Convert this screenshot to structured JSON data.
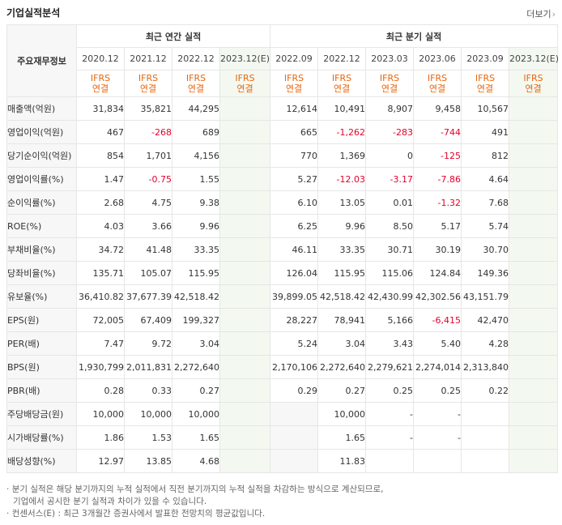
{
  "title": "기업실적분석",
  "more_label": "더보기",
  "row_header": "주요재무정보",
  "groups": {
    "annual": "최근 연간 실적",
    "quarter": "최근 분기 실적"
  },
  "periods": [
    "2020.12",
    "2021.12",
    "2022.12",
    "2023.12(E)",
    "2022.09",
    "2022.12",
    "2023.03",
    "2023.06",
    "2023.09",
    "2023.12(E)"
  ],
  "ifrs_top": "IFRS",
  "ifrs_bottom": "연결",
  "rows": [
    {
      "label": "매출액(억원)",
      "values": [
        "31,834",
        "35,821",
        "44,295",
        "",
        "12,614",
        "10,491",
        "8,907",
        "9,458",
        "10,567",
        ""
      ]
    },
    {
      "label": "영업이익(억원)",
      "values": [
        "467",
        "-268",
        "689",
        "",
        "665",
        "-1,262",
        "-283",
        "-744",
        "491",
        ""
      ]
    },
    {
      "label": "당기순이익(억원)",
      "values": [
        "854",
        "1,701",
        "4,156",
        "",
        "770",
        "1,369",
        "0",
        "-125",
        "812",
        ""
      ]
    },
    {
      "label": "영업이익률(%)",
      "values": [
        "1.47",
        "-0.75",
        "1.55",
        "",
        "5.27",
        "-12.03",
        "-3.17",
        "-7.86",
        "4.64",
        ""
      ]
    },
    {
      "label": "순이익률(%)",
      "values": [
        "2.68",
        "4.75",
        "9.38",
        "",
        "6.10",
        "13.05",
        "0.01",
        "-1.32",
        "7.68",
        ""
      ]
    },
    {
      "label": "ROE(%)",
      "values": [
        "4.03",
        "3.66",
        "9.96",
        "",
        "6.25",
        "9.96",
        "8.50",
        "5.17",
        "5.74",
        ""
      ]
    },
    {
      "label": "부채비율(%)",
      "values": [
        "34.72",
        "41.48",
        "33.35",
        "",
        "46.11",
        "33.35",
        "30.71",
        "30.19",
        "30.70",
        ""
      ]
    },
    {
      "label": "당좌비율(%)",
      "values": [
        "135.71",
        "105.07",
        "115.95",
        "",
        "126.04",
        "115.95",
        "115.06",
        "124.84",
        "149.36",
        ""
      ]
    },
    {
      "label": "유보율(%)",
      "values": [
        "36,410.82",
        "37,677.39",
        "42,518.42",
        "",
        "39,899.05",
        "42,518.42",
        "42,430.99",
        "42,302.56",
        "43,151.79",
        ""
      ]
    },
    {
      "label": "EPS(원)",
      "values": [
        "72,005",
        "67,409",
        "199,327",
        "",
        "28,227",
        "78,941",
        "5,166",
        "-6,415",
        "42,470",
        ""
      ]
    },
    {
      "label": "PER(배)",
      "values": [
        "7.47",
        "9.72",
        "3.04",
        "",
        "5.24",
        "3.04",
        "3.43",
        "5.40",
        "4.28",
        ""
      ]
    },
    {
      "label": "BPS(원)",
      "values": [
        "1,930,799",
        "2,011,831",
        "2,272,640",
        "",
        "2,170,106",
        "2,272,640",
        "2,279,621",
        "2,274,014",
        "2,313,840",
        ""
      ]
    },
    {
      "label": "PBR(배)",
      "values": [
        "0.28",
        "0.33",
        "0.27",
        "",
        "0.29",
        "0.27",
        "0.25",
        "0.25",
        "0.22",
        ""
      ]
    },
    {
      "label": "주당배당금(원)",
      "values": [
        "10,000",
        "10,000",
        "10,000",
        "",
        "",
        "10,000",
        "-",
        "-",
        "",
        ""
      ]
    },
    {
      "label": "시가배당률(%)",
      "values": [
        "1.86",
        "1.53",
        "1.65",
        "",
        "",
        "1.65",
        "-",
        "-",
        "",
        ""
      ]
    },
    {
      "label": "배당성향(%)",
      "values": [
        "12.97",
        "13.85",
        "4.68",
        "",
        "",
        "11.83",
        "",
        "",
        "",
        ""
      ]
    }
  ],
  "notes": [
    "분기 실적은 해당 분기까지의 누적 실적에서 직전 분기까지의 누적 실적을 차감하는 방식으로 계산되므로,",
    "기업에서 공시한 분기 실적과 차이가 있을 수 있습니다.",
    "컨센서스(E) : 최근 3개월간 증권사에서 발표한 전망치의 평균값입니다."
  ],
  "colors": {
    "negative": "#e4002b",
    "ifrs": "#e8660c",
    "estimate_bg": "#f3f9f1",
    "estimate_text": "#2a8a2a"
  }
}
